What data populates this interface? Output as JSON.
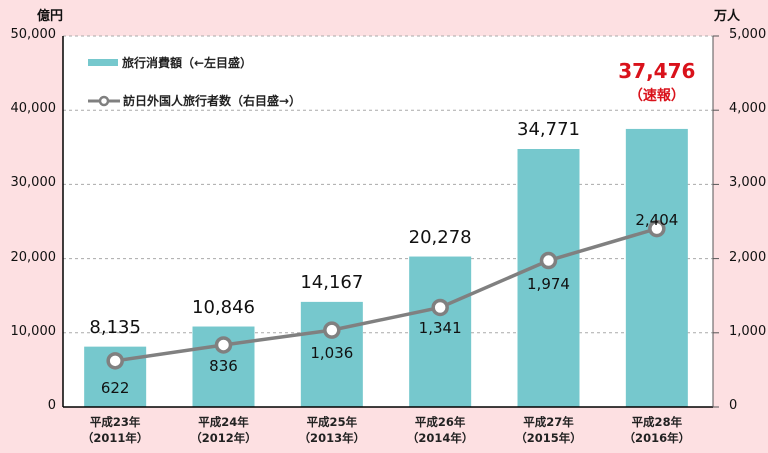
{
  "chart_data": {
    "type": "bar+line",
    "title": "",
    "categories": [
      "平成23年（2011年）",
      "平成24年（2012年）",
      "平成25年（2013年）",
      "平成26年（2014年）",
      "平成27年（2015年）",
      "平成28年（2016年）"
    ],
    "category_lines": [
      [
        "平成23年",
        "（2011年）"
      ],
      [
        "平成24年",
        "（2012年）"
      ],
      [
        "平成25年",
        "（2013年）"
      ],
      [
        "平成26年",
        "（2014年）"
      ],
      [
        "平成27年",
        "（2015年）"
      ],
      [
        "平成28年",
        "（2016年）"
      ]
    ],
    "series": [
      {
        "name": "旅行消費額（←左目盛）",
        "type": "bar",
        "axis": "left",
        "color": "#76c8cd",
        "values": [
          8135,
          10846,
          14167,
          20278,
          34771,
          37476
        ],
        "labels": [
          "8,135",
          "10,846",
          "14,167",
          "20,278",
          "34,771",
          "37,476"
        ]
      },
      {
        "name": "訪日外国人旅行者数（右目盛→）",
        "type": "line",
        "axis": "right",
        "color": "#808080",
        "values": [
          622,
          836,
          1036,
          1341,
          1974,
          2404
        ],
        "labels": [
          "622",
          "836",
          "1,036",
          "1,341",
          "1,974",
          "2,404"
        ]
      }
    ],
    "left_axis": {
      "unit": "億円",
      "ylim": [
        0,
        50000
      ],
      "ticks": [
        "0",
        "10,000",
        "20,000",
        "30,000",
        "40,000",
        "50,000"
      ]
    },
    "right_axis": {
      "unit": "万人",
      "ylim": [
        0,
        5000
      ],
      "ticks": [
        "0",
        "1,000",
        "2,000",
        "3,000",
        "4,000",
        "5,000"
      ]
    },
    "annotation": {
      "value": "37,476",
      "note": "（速報）",
      "color": "#d9121b"
    },
    "grid": "horizontal dashed",
    "legend_position": "top-left inside"
  },
  "legend": {
    "bar": "旅行消費額（←左目盛）",
    "line": "訪日外国人旅行者数（右目盛→）"
  },
  "units": {
    "left": "億円",
    "right": "万人"
  }
}
